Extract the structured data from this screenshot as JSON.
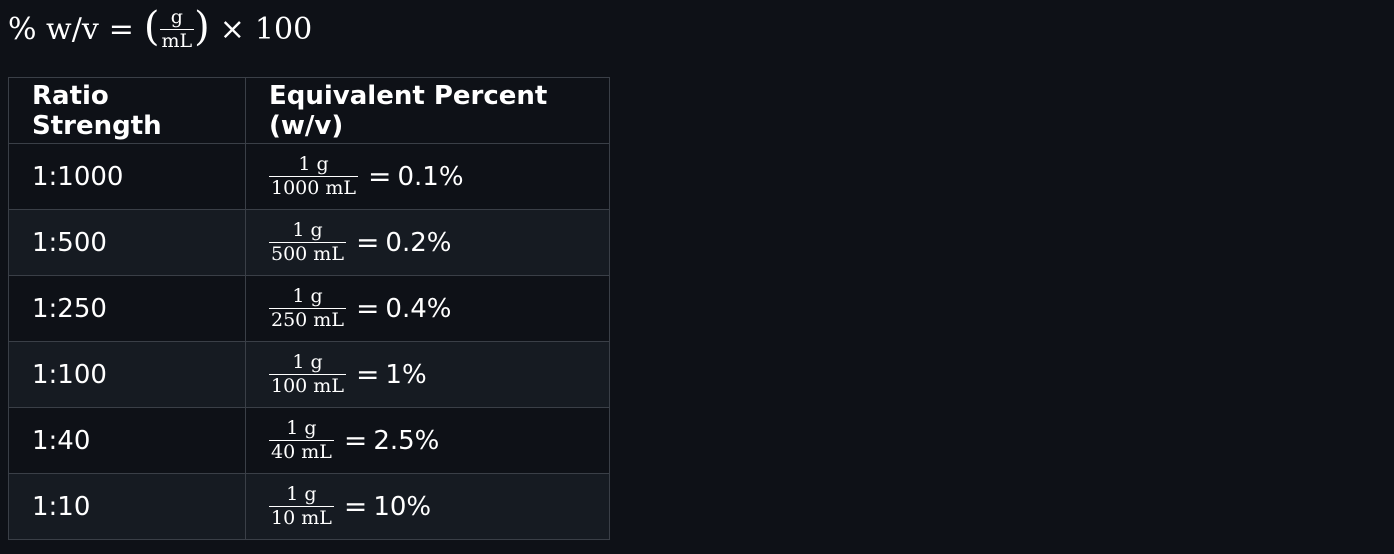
{
  "formula": {
    "lhs": "% w/v",
    "equals": "=",
    "open_paren": "(",
    "frac_num": "g",
    "frac_den": "mL",
    "close_paren": ")",
    "times": "×",
    "factor": "100"
  },
  "table": {
    "headers": [
      "Ratio Strength",
      "Equivalent Percent (w/v)"
    ],
    "rows": [
      {
        "ratio": "1:1000",
        "num": "1 g",
        "den": "1000 mL",
        "eq": "=",
        "pct": "0.1%"
      },
      {
        "ratio": "1:500",
        "num": "1 g",
        "den": "500 mL",
        "eq": "=",
        "pct": "0.2%"
      },
      {
        "ratio": "1:250",
        "num": "1 g",
        "den": "250 mL",
        "eq": "=",
        "pct": "0.4%"
      },
      {
        "ratio": "1:100",
        "num": "1 g",
        "den": "100 mL",
        "eq": "=",
        "pct": "1%"
      },
      {
        "ratio": "1:40",
        "num": "1 g",
        "den": "40 mL",
        "eq": "=",
        "pct": "2.5%"
      },
      {
        "ratio": "1:10",
        "num": "1 g",
        "den": "10 mL",
        "eq": "=",
        "pct": "10%"
      }
    ]
  },
  "colors": {
    "background": "#0e1117",
    "row_alt": "#161b22",
    "border": "#3a3f47",
    "text": "#ffffff"
  }
}
